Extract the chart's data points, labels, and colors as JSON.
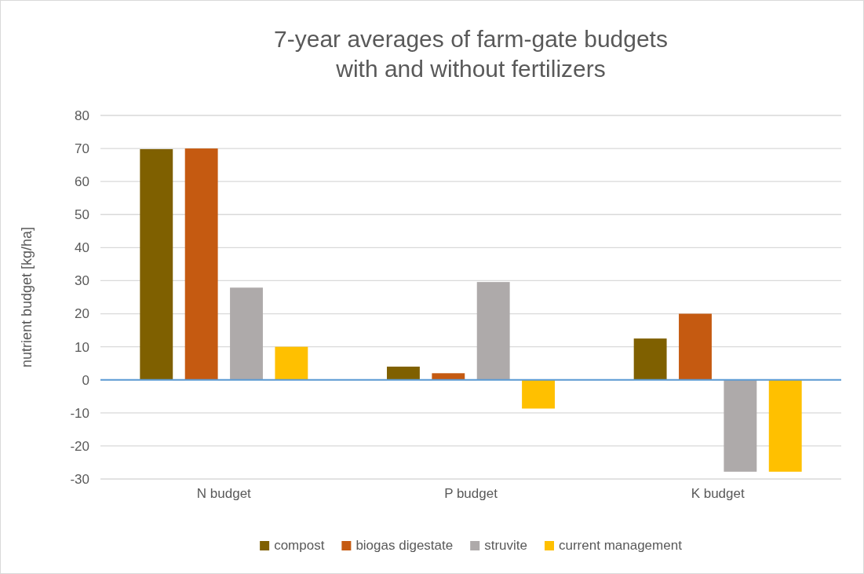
{
  "chart_data": {
    "type": "bar",
    "title": "7-year averages of farm-gate budgets\nwith and without fertilizers",
    "ylabel": "nutrient budget [kg/ha]",
    "categories": [
      "N budget",
      "P budget",
      "K budget"
    ],
    "series": [
      {
        "name": "compost",
        "color": "#7f6000",
        "values": [
          69.8,
          4,
          12.5
        ]
      },
      {
        "name": "biogas digestate",
        "color": "#c55a11",
        "values": [
          70,
          2,
          20
        ]
      },
      {
        "name": "struvite",
        "color": "#aeaaaa",
        "values": [
          27.9,
          29.6,
          -27.8
        ]
      },
      {
        "name": "current management",
        "color": "#ffc000",
        "values": [
          10,
          -8.7,
          -27.8
        ]
      }
    ],
    "ylim": [
      -30,
      80
    ],
    "yticks": [
      -30,
      -20,
      -10,
      0,
      10,
      20,
      30,
      40,
      50,
      60,
      70,
      80
    ],
    "grid": "y",
    "legend": "bottom",
    "ref_lines": [
      {
        "axis": "y",
        "value": 0,
        "color": "#5b9bd5"
      }
    ]
  }
}
